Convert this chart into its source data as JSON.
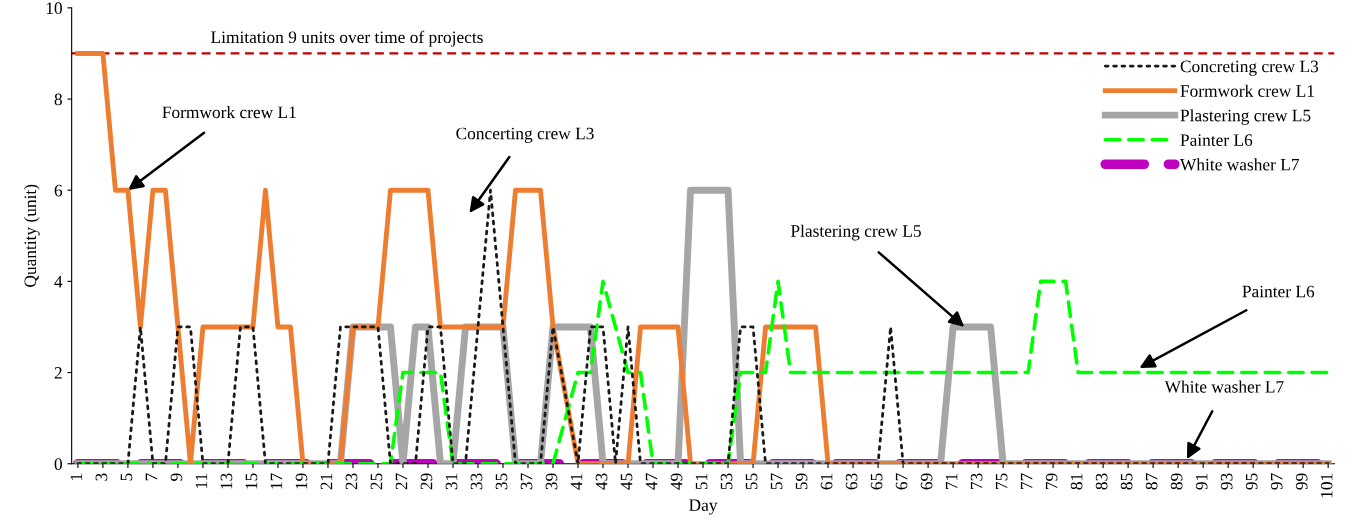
{
  "chart_data": {
    "type": "line",
    "xlabel": "Day",
    "ylabel": "Quantity (unit)",
    "x": [
      1,
      2,
      3,
      4,
      5,
      6,
      7,
      8,
      9,
      10,
      11,
      12,
      13,
      14,
      15,
      16,
      17,
      18,
      19,
      20,
      21,
      22,
      23,
      24,
      25,
      26,
      27,
      28,
      29,
      30,
      31,
      32,
      33,
      34,
      35,
      36,
      37,
      38,
      39,
      40,
      41,
      42,
      43,
      44,
      45,
      46,
      47,
      48,
      49,
      50,
      51,
      52,
      53,
      54,
      55,
      56,
      57,
      58,
      59,
      60,
      61,
      62,
      63,
      64,
      65,
      66,
      67,
      68,
      69,
      70,
      71,
      72,
      73,
      74,
      75,
      76,
      77,
      78,
      79,
      80,
      81,
      82,
      83,
      84,
      85,
      86,
      87,
      88,
      89,
      90,
      91,
      92,
      93,
      94,
      95,
      96,
      97,
      98,
      99,
      100,
      101
    ],
    "xlim": [
      0.5,
      101.5
    ],
    "xticks": [
      1,
      3,
      5,
      7,
      9,
      11,
      13,
      15,
      17,
      19,
      21,
      23,
      25,
      27,
      29,
      31,
      33,
      35,
      37,
      39,
      41,
      43,
      45,
      47,
      49,
      51,
      53,
      55,
      57,
      59,
      61,
      63,
      65,
      67,
      69,
      71,
      73,
      75,
      77,
      79,
      81,
      83,
      85,
      87,
      89,
      91,
      93,
      95,
      97,
      99,
      101
    ],
    "ylim": [
      0,
      10
    ],
    "yticks": [
      0,
      2,
      4,
      6,
      8,
      10
    ],
    "grid": false,
    "legend": "top right",
    "series": [
      {
        "name": "Concreting crew L3",
        "color": "#1a1a1a",
        "line_style": "dotted",
        "values": [
          0,
          0,
          0,
          0,
          0,
          3,
          0,
          0,
          3,
          3,
          0,
          0,
          0,
          3,
          3,
          0,
          0,
          0,
          0,
          0,
          0,
          3,
          3,
          3,
          3,
          0,
          0,
          0,
          3,
          3,
          0,
          0,
          3,
          6,
          3,
          0,
          0,
          0,
          3,
          1.5,
          0,
          3,
          3,
          0,
          3,
          0,
          0,
          0,
          0,
          0,
          0,
          0,
          0,
          3,
          3,
          0,
          0,
          0,
          0,
          0,
          0,
          0,
          0,
          0,
          0,
          3,
          0,
          0,
          0,
          0,
          0,
          0,
          0,
          0,
          0,
          0,
          0,
          0,
          0,
          0,
          0,
          0,
          0,
          0,
          0,
          0,
          0,
          0,
          0,
          0,
          0,
          0,
          0,
          0,
          0,
          0,
          0,
          0,
          0,
          0,
          0
        ]
      },
      {
        "name": "Formwork crew L1",
        "color": "#ed7d31",
        "line_style": "solid",
        "values": [
          9,
          9,
          9,
          6,
          6,
          3,
          6,
          6,
          3,
          0,
          3,
          3,
          3,
          3,
          3,
          6,
          3,
          3,
          0,
          0,
          0,
          0,
          3,
          3,
          3,
          6,
          6,
          6,
          6,
          3,
          3,
          3,
          3,
          3,
          3,
          6,
          6,
          6,
          3,
          1.5,
          0,
          0,
          0,
          0,
          0,
          3,
          3,
          3,
          3,
          0,
          0,
          0,
          0,
          0,
          0,
          3,
          3,
          3,
          3,
          3,
          0,
          0,
          0,
          0,
          0,
          0,
          0,
          0,
          0,
          0,
          0,
          0,
          0,
          0,
          0,
          0,
          0,
          0,
          0,
          0,
          0,
          0,
          0,
          0,
          0,
          0,
          0,
          0,
          0,
          0,
          0,
          0,
          0,
          0,
          0,
          0,
          0,
          0,
          0,
          0,
          0
        ]
      },
      {
        "name": "Plastering crew L5",
        "color": "#a6a6a6",
        "line_style": "solid",
        "values": [
          0,
          0,
          0,
          0,
          0,
          0,
          0,
          0,
          0,
          0,
          0,
          0,
          0,
          0,
          0,
          0,
          0,
          0,
          0,
          0,
          0,
          0,
          3,
          3,
          3,
          3,
          0,
          3,
          3,
          0,
          0,
          3,
          3,
          3,
          3,
          0,
          0,
          0,
          3,
          3,
          3,
          3,
          0,
          0,
          0,
          0,
          0,
          0,
          0,
          6,
          6,
          6,
          6,
          0,
          0,
          0,
          0,
          0,
          0,
          0,
          0,
          0,
          0,
          0,
          0,
          0,
          0,
          0,
          0,
          0,
          3,
          3,
          3,
          3,
          0,
          0,
          0,
          0,
          0,
          0,
          0,
          0,
          0,
          0,
          0,
          0,
          0,
          0,
          0,
          0,
          0,
          0,
          0,
          0,
          0,
          0,
          0,
          0,
          0,
          0,
          0
        ]
      },
      {
        "name": "Painter L6",
        "color": "#00ff00",
        "line_style": "dashed",
        "values": [
          0,
          0,
          0,
          0,
          0,
          0,
          0,
          0,
          0,
          0,
          0,
          0,
          0,
          0,
          0,
          0,
          0,
          0,
          0,
          0,
          0,
          0,
          0,
          0,
          0,
          0,
          2,
          2,
          2,
          2,
          0,
          0,
          0,
          0,
          0,
          0,
          0,
          0,
          0,
          1,
          2,
          2,
          4,
          3,
          2,
          2,
          0,
          0,
          0,
          0,
          0,
          0,
          0,
          2,
          2,
          2,
          4,
          2,
          2,
          2,
          2,
          2,
          2,
          2,
          2,
          2,
          2,
          2,
          2,
          2,
          2,
          2,
          2,
          2,
          2,
          2,
          2,
          4,
          4,
          4,
          2,
          2,
          2,
          2,
          2,
          2,
          2,
          2,
          2,
          2,
          2,
          2,
          2,
          2,
          2,
          2,
          2,
          2,
          2,
          2,
          2
        ]
      },
      {
        "name": "White washer L7",
        "color": "#c000c0",
        "line_style": "dashed",
        "values": [
          0,
          0,
          0,
          0,
          0,
          0,
          0,
          0,
          0,
          0,
          0,
          0,
          0,
          0,
          0,
          0,
          0,
          0,
          0,
          0,
          0,
          0,
          0,
          0,
          0,
          0,
          0,
          0,
          0,
          0,
          0,
          0,
          0,
          0,
          0,
          0,
          0,
          0,
          0,
          0,
          0,
          0,
          0,
          0,
          0,
          0,
          0,
          0,
          0,
          0,
          0,
          0,
          0,
          0,
          0,
          0,
          0,
          0,
          0,
          0,
          0,
          0,
          0,
          0,
          0,
          0,
          0,
          0,
          0,
          0,
          0,
          0,
          0,
          0,
          0,
          0,
          0,
          0,
          0,
          0,
          0,
          0,
          0,
          0,
          0,
          0,
          0,
          0,
          0,
          0,
          0,
          0,
          0,
          0,
          0,
          0,
          0,
          0,
          0,
          0,
          0
        ]
      }
    ],
    "ref_lines": [
      {
        "axis": "y",
        "value": 9,
        "label": "Limitation 9 units over time of projects",
        "color": "#c00000",
        "line_style": "dashed"
      }
    ],
    "annotations": [
      {
        "text": "Formwork crew L1",
        "x": 5,
        "y": 6
      },
      "Concerting crew L3",
      {
        "text": "Plastering crew L5",
        "x": 71.9,
        "y": 3
      },
      {
        "text": "Painter L6",
        "x": 85.9,
        "y": 2.1
      },
      {
        "text": "White washer L7",
        "x": 89.7,
        "y": 0.1
      }
    ]
  }
}
